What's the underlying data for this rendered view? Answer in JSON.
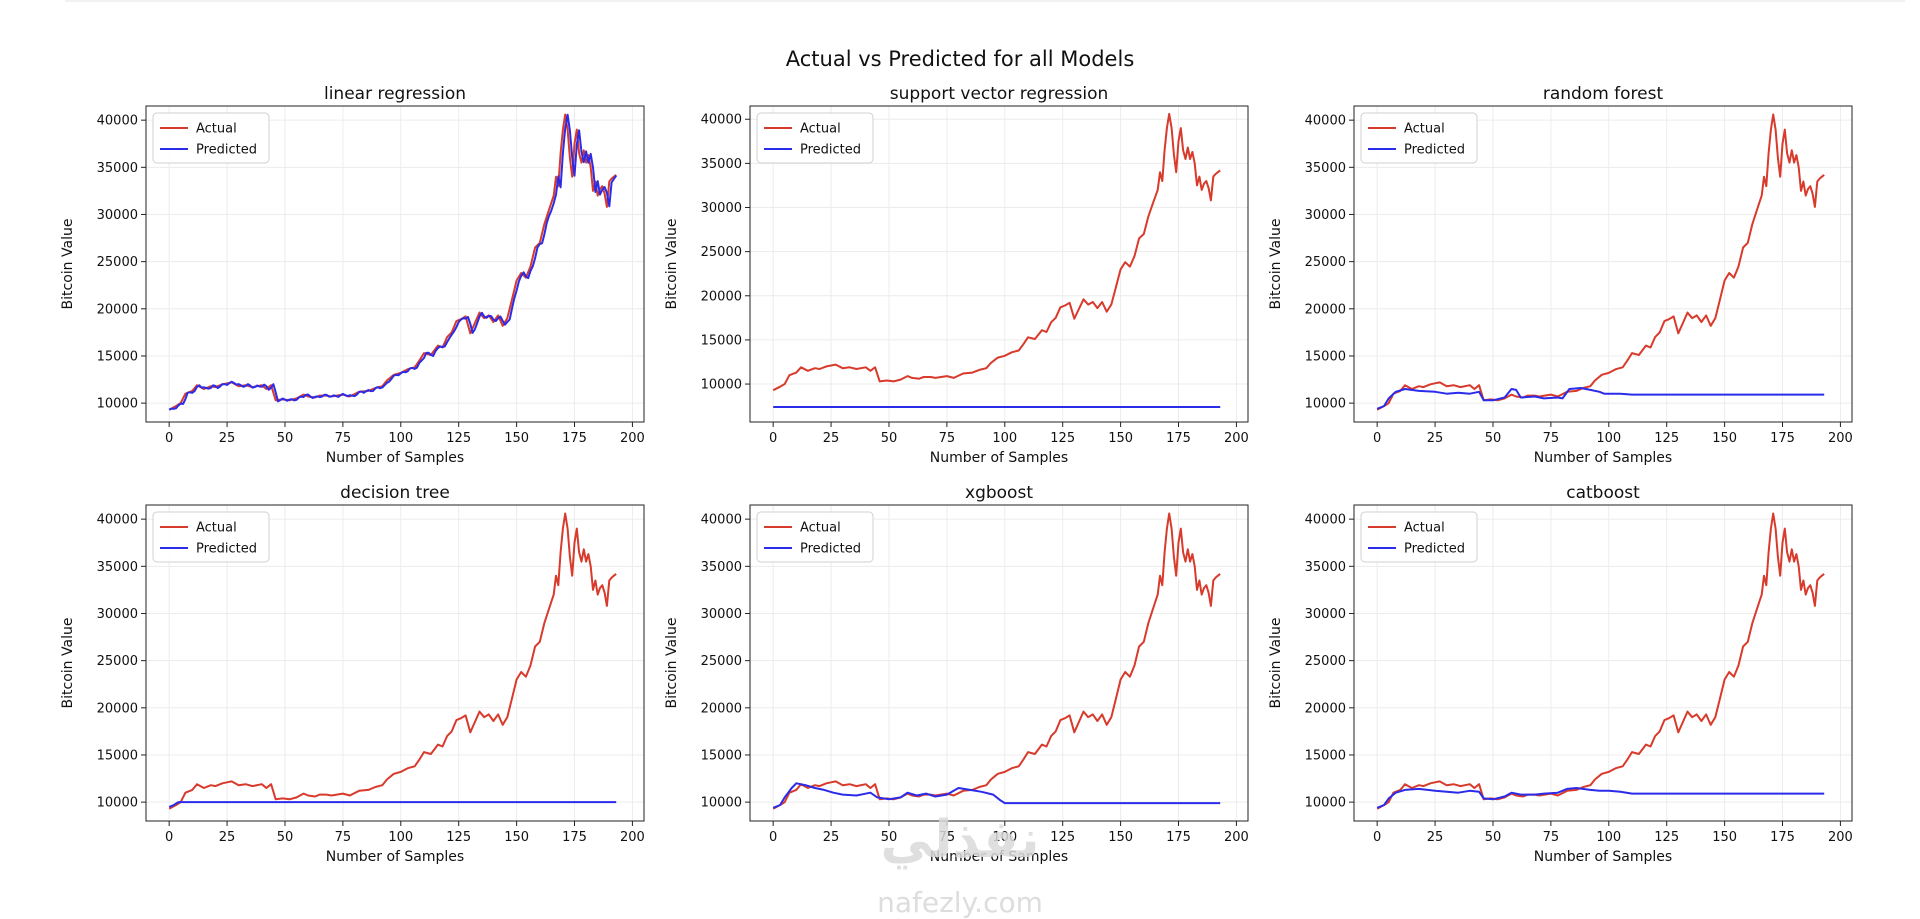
{
  "figure": {
    "suptitle": "Actual vs Predicted for all Models",
    "watermark": {
      "arabic": "نفذلي",
      "latin": "nafezly.com"
    }
  },
  "colors": {
    "actual": "#d83a2b",
    "predicted": "#2b2bea"
  },
  "chart_data": [
    {
      "type": "line",
      "title": "linear regression",
      "xlabel": "Number of Samples",
      "ylabel": "Bitcoin Value",
      "xlim": [
        -10,
        205
      ],
      "ylim": [
        8000,
        41500
      ],
      "xticks": [
        0,
        25,
        50,
        75,
        100,
        125,
        150,
        175,
        200
      ],
      "yticks": [
        10000,
        15000,
        20000,
        25000,
        30000,
        35000,
        40000
      ],
      "legend": [
        "Actual",
        "Predicted"
      ],
      "legend_loc": "top-left",
      "grid": true,
      "predicted_kind": "lagged",
      "series": [
        {
          "name": "Actual",
          "points": [
            [
              0,
              9300
            ],
            [
              3,
              9700
            ],
            [
              5,
              10000
            ],
            [
              7,
              11000
            ],
            [
              10,
              11300
            ],
            [
              12,
              11900
            ],
            [
              15,
              11500
            ],
            [
              18,
              11800
            ],
            [
              20,
              11700
            ],
            [
              23,
              12000
            ],
            [
              25,
              12100
            ],
            [
              27,
              12200
            ],
            [
              30,
              11800
            ],
            [
              33,
              11900
            ],
            [
              36,
              11700
            ],
            [
              40,
              11900
            ],
            [
              42,
              11500
            ],
            [
              44,
              11900
            ],
            [
              46,
              10300
            ],
            [
              49,
              10400
            ],
            [
              52,
              10300
            ],
            [
              55,
              10500
            ],
            [
              58,
              10900
            ],
            [
              60,
              10700
            ],
            [
              63,
              10600
            ],
            [
              65,
              10800
            ],
            [
              68,
              10800
            ],
            [
              70,
              10700
            ],
            [
              75,
              10900
            ],
            [
              78,
              10700
            ],
            [
              82,
              11200
            ],
            [
              86,
              11300
            ],
            [
              89,
              11600
            ],
            [
              92,
              11800
            ],
            [
              94,
              12400
            ],
            [
              97,
              13000
            ],
            [
              100,
              13200
            ],
            [
              103,
              13600
            ],
            [
              106,
              13800
            ],
            [
              108,
              14500
            ],
            [
              110,
              15300
            ],
            [
              113,
              15100
            ],
            [
              116,
              16100
            ],
            [
              118,
              15900
            ],
            [
              120,
              17000
            ],
            [
              122,
              17500
            ],
            [
              124,
              18700
            ],
            [
              126,
              18900
            ],
            [
              128,
              19200
            ],
            [
              130,
              17400
            ],
            [
              132,
              18500
            ],
            [
              134,
              19600
            ],
            [
              136,
              19000
            ],
            [
              138,
              19300
            ],
            [
              140,
              18600
            ],
            [
              142,
              19300
            ],
            [
              144,
              18200
            ],
            [
              146,
              19000
            ],
            [
              148,
              21000
            ],
            [
              150,
              23000
            ],
            [
              152,
              23800
            ],
            [
              154,
              23300
            ],
            [
              156,
              24500
            ],
            [
              158,
              26500
            ],
            [
              160,
              27000
            ],
            [
              162,
              29000
            ],
            [
              164,
              30500
            ],
            [
              166,
              32000
            ],
            [
              167,
              34000
            ],
            [
              168,
              33000
            ],
            [
              169,
              36500
            ],
            [
              170,
              39000
            ],
            [
              171,
              40600
            ],
            [
              172,
              39000
            ],
            [
              173,
              36000
            ],
            [
              174,
              34000
            ],
            [
              175,
              37500
            ],
            [
              176,
              39000
            ],
            [
              177,
              36500
            ],
            [
              178,
              35500
            ],
            [
              179,
              36800
            ],
            [
              180,
              35500
            ],
            [
              181,
              36300
            ],
            [
              182,
              35000
            ],
            [
              183,
              32500
            ],
            [
              184,
              33500
            ],
            [
              185,
              32000
            ],
            [
              186,
              32700
            ],
            [
              187,
              33000
            ],
            [
              188,
              32200
            ],
            [
              189,
              30800
            ],
            [
              190,
              33500
            ],
            [
              191,
              33800
            ],
            [
              192,
              34000
            ],
            [
              193,
              34200
            ]
          ]
        },
        {
          "name": "Predicted",
          "values": []
        }
      ]
    },
    {
      "type": "line",
      "title": "support vector regression",
      "xlabel": "Number of Samples",
      "ylabel": "Bitcoin Value",
      "xlim": [
        -10,
        205
      ],
      "ylim": [
        5700,
        41500
      ],
      "xticks": [
        0,
        25,
        50,
        75,
        100,
        125,
        150,
        175,
        200
      ],
      "yticks": [
        10000,
        15000,
        20000,
        25000,
        30000,
        35000,
        40000
      ],
      "legend": [
        "Actual",
        "Predicted"
      ],
      "legend_loc": "top-left",
      "grid": true,
      "predicted_kind": "points",
      "series": [
        {
          "name": "Actual",
          "ref": 0
        },
        {
          "name": "Predicted",
          "points": [
            [
              0,
              7400
            ],
            [
              193,
              7400
            ]
          ]
        }
      ]
    },
    {
      "type": "line",
      "title": "random forest",
      "xlabel": "Number of Samples",
      "ylabel": "Bitcoin Value",
      "xlim": [
        -10,
        205
      ],
      "ylim": [
        8000,
        41500
      ],
      "xticks": [
        0,
        25,
        50,
        75,
        100,
        125,
        150,
        175,
        200
      ],
      "yticks": [
        10000,
        15000,
        20000,
        25000,
        30000,
        35000,
        40000
      ],
      "legend": [
        "Actual",
        "Predicted"
      ],
      "legend_loc": "top-left",
      "grid": true,
      "predicted_kind": "points",
      "series": [
        {
          "name": "Actual",
          "ref": 0
        },
        {
          "name": "Predicted",
          "points": [
            [
              0,
              9400
            ],
            [
              3,
              9700
            ],
            [
              5,
              10500
            ],
            [
              8,
              11200
            ],
            [
              12,
              11500
            ],
            [
              18,
              11300
            ],
            [
              25,
              11200
            ],
            [
              30,
              11000
            ],
            [
              35,
              11100
            ],
            [
              40,
              11000
            ],
            [
              44,
              11200
            ],
            [
              46,
              10300
            ],
            [
              50,
              10300
            ],
            [
              55,
              10600
            ],
            [
              58,
              11500
            ],
            [
              60,
              11400
            ],
            [
              62,
              10600
            ],
            [
              68,
              10700
            ],
            [
              72,
              10500
            ],
            [
              78,
              10600
            ],
            [
              80,
              10500
            ],
            [
              83,
              11500
            ],
            [
              88,
              11600
            ],
            [
              92,
              11400
            ],
            [
              96,
              11200
            ],
            [
              98,
              11000
            ],
            [
              105,
              11000
            ],
            [
              110,
              10900
            ],
            [
              193,
              10900
            ]
          ]
        }
      ]
    },
    {
      "type": "line",
      "title": "decision tree",
      "xlabel": "Number of Samples",
      "ylabel": "Bitcoin Value",
      "xlim": [
        -10,
        205
      ],
      "ylim": [
        8000,
        41500
      ],
      "xticks": [
        0,
        25,
        50,
        75,
        100,
        125,
        150,
        175,
        200
      ],
      "yticks": [
        10000,
        15000,
        20000,
        25000,
        30000,
        35000,
        40000
      ],
      "legend": [
        "Actual",
        "Predicted"
      ],
      "legend_loc": "top-left",
      "grid": true,
      "predicted_kind": "points",
      "series": [
        {
          "name": "Actual",
          "ref": 0
        },
        {
          "name": "Predicted",
          "points": [
            [
              0,
              9500
            ],
            [
              2,
              9700
            ],
            [
              4,
              10000
            ],
            [
              193,
              10000
            ]
          ]
        }
      ]
    },
    {
      "type": "line",
      "title": "xgboost",
      "xlabel": "Number of Samples",
      "ylabel": "Bitcoin Value",
      "xlim": [
        -10,
        205
      ],
      "ylim": [
        8000,
        41500
      ],
      "xticks": [
        0,
        25,
        50,
        75,
        100,
        125,
        150,
        175,
        200
      ],
      "yticks": [
        10000,
        15000,
        20000,
        25000,
        30000,
        35000,
        40000
      ],
      "legend": [
        "Actual",
        "Predicted"
      ],
      "legend_loc": "top-left",
      "grid": true,
      "predicted_kind": "points",
      "series": [
        {
          "name": "Actual",
          "ref": 0
        },
        {
          "name": "Predicted",
          "points": [
            [
              0,
              9400
            ],
            [
              3,
              9700
            ],
            [
              5,
              10500
            ],
            [
              8,
              11500
            ],
            [
              10,
              12000
            ],
            [
              14,
              11800
            ],
            [
              18,
              11500
            ],
            [
              22,
              11300
            ],
            [
              26,
              11000
            ],
            [
              30,
              10800
            ],
            [
              36,
              10700
            ],
            [
              42,
              11000
            ],
            [
              45,
              10500
            ],
            [
              50,
              10300
            ],
            [
              55,
              10500
            ],
            [
              58,
              11000
            ],
            [
              62,
              10700
            ],
            [
              66,
              10900
            ],
            [
              70,
              10600
            ],
            [
              75,
              10800
            ],
            [
              80,
              11500
            ],
            [
              85,
              11300
            ],
            [
              90,
              11100
            ],
            [
              95,
              10800
            ],
            [
              98,
              10200
            ],
            [
              100,
              9900
            ],
            [
              193,
              9900
            ]
          ]
        }
      ]
    },
    {
      "type": "line",
      "title": "catboost",
      "xlabel": "Number of Samples",
      "ylabel": "Bitcoin Value",
      "xlim": [
        -10,
        205
      ],
      "ylim": [
        8000,
        41500
      ],
      "xticks": [
        0,
        25,
        50,
        75,
        100,
        125,
        150,
        175,
        200
      ],
      "yticks": [
        10000,
        15000,
        20000,
        25000,
        30000,
        35000,
        40000
      ],
      "legend": [
        "Actual",
        "Predicted"
      ],
      "legend_loc": "top-left",
      "grid": true,
      "predicted_kind": "points",
      "series": [
        {
          "name": "Actual",
          "ref": 0
        },
        {
          "name": "Predicted",
          "points": [
            [
              0,
              9400
            ],
            [
              3,
              9700
            ],
            [
              5,
              10400
            ],
            [
              8,
              11000
            ],
            [
              12,
              11300
            ],
            [
              18,
              11400
            ],
            [
              25,
              11200
            ],
            [
              30,
              11100
            ],
            [
              35,
              11000
            ],
            [
              40,
              11200
            ],
            [
              44,
              11100
            ],
            [
              46,
              10400
            ],
            [
              50,
              10300
            ],
            [
              55,
              10600
            ],
            [
              58,
              11000
            ],
            [
              62,
              10800
            ],
            [
              68,
              10800
            ],
            [
              72,
              10900
            ],
            [
              78,
              11000
            ],
            [
              82,
              11400
            ],
            [
              86,
              11500
            ],
            [
              92,
              11300
            ],
            [
              96,
              11200
            ],
            [
              100,
              11200
            ],
            [
              105,
              11100
            ],
            [
              110,
              10900
            ],
            [
              193,
              10900
            ]
          ]
        }
      ]
    }
  ]
}
